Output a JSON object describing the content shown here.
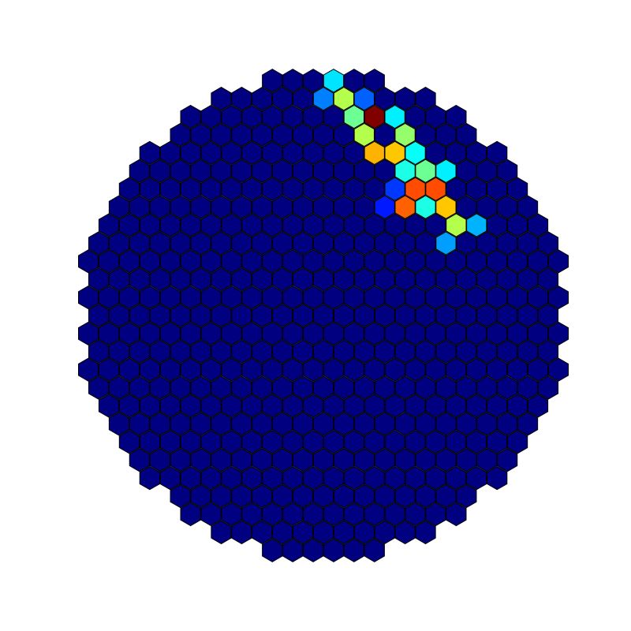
{
  "chart_data": {
    "type": "heatmap",
    "layout": "hexagonal",
    "title": "",
    "xlabel": "",
    "ylabel": "",
    "colormap": "jet",
    "background_value": 0,
    "value_range": [
      0,
      1
    ],
    "lit_pixels": [
      {
        "row": -14,
        "col": 1,
        "value": 0.45
      },
      {
        "row": -14,
        "col": 2,
        "value": 0.28
      },
      {
        "row": -13,
        "col": 0,
        "value": 0.35
      },
      {
        "row": -13,
        "col": 3,
        "value": 0.42
      },
      {
        "row": -12,
        "col": 0,
        "value": 0.25
      },
      {
        "row": -12,
        "col": 1,
        "value": 0.55
      },
      {
        "row": -12,
        "col": 2,
        "value": 0.22
      },
      {
        "row": -11,
        "col": 1,
        "value": 0.48
      },
      {
        "row": -11,
        "col": 2,
        "value": 1.0
      },
      {
        "row": -11,
        "col": 3,
        "value": 0.36
      },
      {
        "row": -10,
        "col": 2,
        "value": 0.55
      },
      {
        "row": -10,
        "col": 4,
        "value": 0.52
      },
      {
        "row": -9,
        "col": 2,
        "value": 0.7
      },
      {
        "row": -9,
        "col": 3,
        "value": 0.68
      },
      {
        "row": -9,
        "col": 4,
        "value": 0.38
      },
      {
        "row": -8,
        "col": 4,
        "value": 0.4
      },
      {
        "row": -8,
        "col": 5,
        "value": 0.48
      },
      {
        "row": -8,
        "col": 6,
        "value": 0.36
      },
      {
        "row": -7,
        "col": 3,
        "value": 0.18
      },
      {
        "row": -7,
        "col": 4,
        "value": 0.8
      },
      {
        "row": -7,
        "col": 5,
        "value": 0.8
      },
      {
        "row": -6,
        "col": 3,
        "value": 0.15
      },
      {
        "row": -6,
        "col": 4,
        "value": 0.78
      },
      {
        "row": -6,
        "col": 5,
        "value": 0.4
      },
      {
        "row": -6,
        "col": 6,
        "value": 0.68
      },
      {
        "row": -5,
        "col": 6,
        "value": 0.55
      },
      {
        "row": -5,
        "col": 7,
        "value": 0.3
      },
      {
        "row": -4,
        "col": 6,
        "value": 0.28
      }
    ]
  }
}
